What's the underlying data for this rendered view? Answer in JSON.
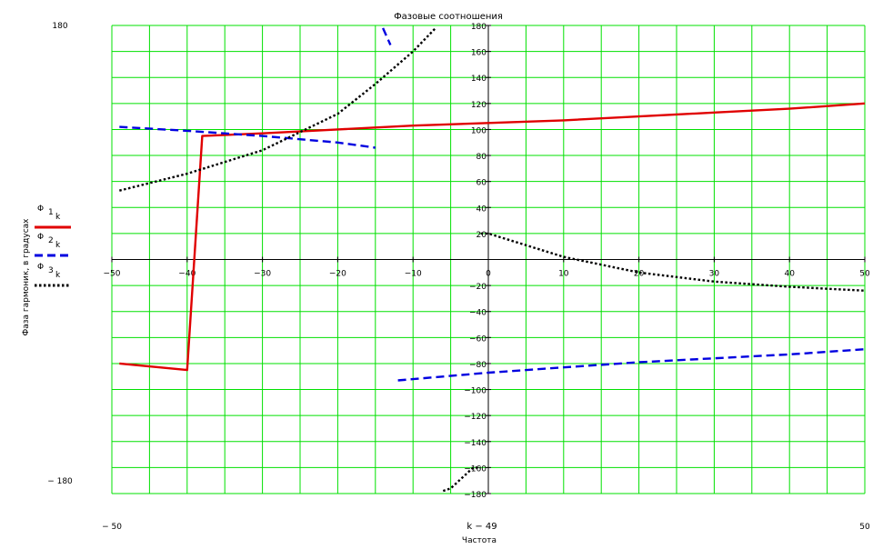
{
  "chart_data": {
    "type": "line",
    "title": "Фазовые соотношения",
    "xlabel": "Частота",
    "x_variable": "k − 49",
    "ylabel": "Фаза гармоник, в градусах",
    "xlim": [
      -50,
      50
    ],
    "ylim": [
      -180,
      180
    ],
    "x_ticks": [
      -50,
      -40,
      -30,
      -20,
      -10,
      0,
      10,
      20,
      30,
      40,
      50
    ],
    "x_tick_labels": [
      "−50",
      "−40",
      "−30",
      "−20",
      "−10",
      "0",
      "10",
      "20",
      "30",
      "40",
      "50"
    ],
    "y_ticks": [
      -180,
      -160,
      -140,
      -120,
      -100,
      -80,
      -60,
      -40,
      -20,
      0,
      20,
      40,
      60,
      80,
      100,
      120,
      140,
      160,
      180
    ],
    "y_tick_labels": [
      "−180",
      "−160",
      "−140",
      "−120",
      "−100",
      "−80",
      "−60",
      "−40",
      "−20",
      "0",
      "20",
      "40",
      "60",
      "80",
      "100",
      "120",
      "140",
      "160",
      "180"
    ],
    "x_range_labels": [
      "− 50",
      "50"
    ],
    "y_range_labels": [
      "180",
      "− 180"
    ],
    "grid": true,
    "grid_color": "#00e000",
    "legend_position": "left",
    "series": [
      {
        "name": "Φ 1 k",
        "legend_main": "Φ",
        "legend_sub": "1",
        "legend_subsub": "k",
        "color": "#e00000",
        "dash": "solid",
        "x": [
          -49,
          -40,
          -38,
          -30,
          -20,
          -10,
          0,
          10,
          20,
          30,
          40,
          50
        ],
        "y": [
          -80,
          -85,
          95,
          97,
          100,
          103,
          105,
          107,
          110,
          113,
          116,
          120
        ]
      },
      {
        "name": "Φ 2 k",
        "legend_main": "Φ",
        "legend_sub": "2",
        "legend_subsub": "k",
        "color": "#0000e0",
        "dash": "dashed",
        "x": [
          -49,
          -40,
          -30,
          -20,
          -15,
          -14,
          -13,
          -12,
          -10,
          0,
          10,
          20,
          30,
          40,
          50
        ],
        "y": [
          102,
          99,
          95,
          90,
          86,
          178,
          165,
          -93,
          -92,
          -87,
          -83,
          -79,
          -76,
          -73,
          -69
        ],
        "breaks_after_index": [
          4,
          6
        ]
      },
      {
        "name": "Φ 3 k",
        "legend_main": "Φ",
        "legend_sub": "3",
        "legend_subsub": "k",
        "color": "#000000",
        "dash": "dotted",
        "x": [
          -49,
          -40,
          -30,
          -20,
          -15,
          -10,
          -7,
          -6,
          -5,
          -2,
          -1,
          -1,
          0,
          10,
          20,
          30,
          40,
          50
        ],
        "y": [
          53,
          66,
          84,
          112,
          135,
          160,
          178,
          -178,
          -176,
          -160,
          -160,
          20,
          20,
          2,
          -10,
          -17,
          -21,
          -24
        ],
        "breaks_after_index": [
          6,
          10
        ]
      }
    ]
  }
}
